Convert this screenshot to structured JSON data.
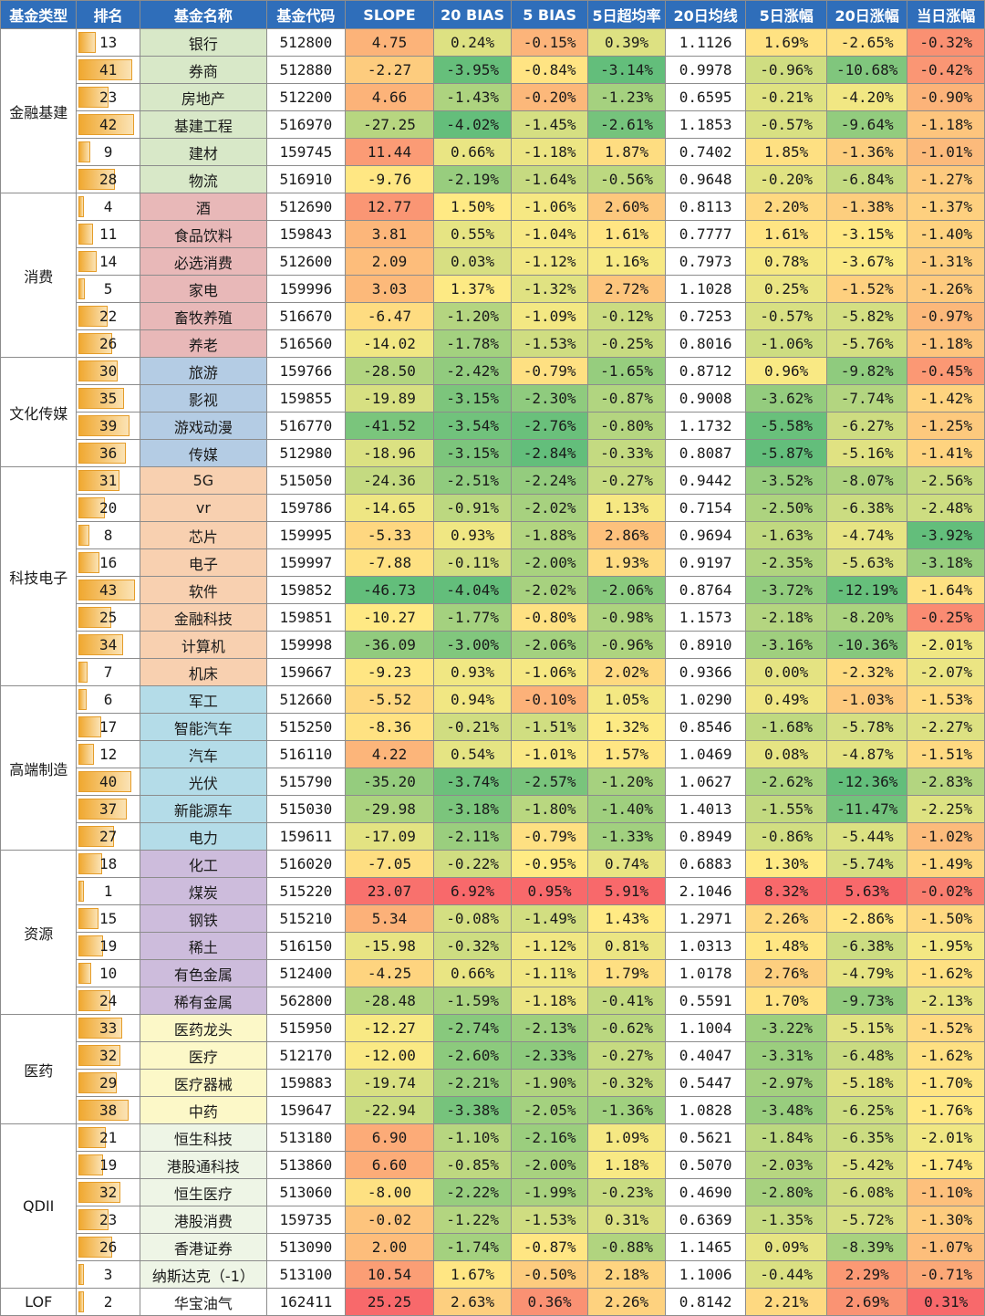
{
  "headers": [
    "基金类型",
    "排名",
    "基金名称",
    "基金代码",
    "SLOPE",
    "20 BIAS",
    "5 BIAS",
    "5日超均率",
    "20日均线",
    "5日涨幅",
    "20日涨幅",
    "当日涨幅"
  ],
  "groups": [
    {
      "type": "金融基建",
      "color": "#d8e8c8",
      "rows": [
        [
          "13",
          "银行",
          "512800",
          "4.75",
          "0.24%",
          "-0.15%",
          "0.39%",
          "1.1126",
          "1.69%",
          "-2.65%",
          "-0.32%"
        ],
        [
          "41",
          "券商",
          "512880",
          "-2.27",
          "-3.95%",
          "-0.84%",
          "-3.14%",
          "0.9978",
          "-0.96%",
          "-10.68%",
          "-0.42%"
        ],
        [
          "23",
          "房地产",
          "512200",
          "4.66",
          "-1.43%",
          "-0.20%",
          "-1.23%",
          "0.6595",
          "-0.21%",
          "-4.20%",
          "-0.90%"
        ],
        [
          "42",
          "基建工程",
          "516970",
          "-27.25",
          "-4.02%",
          "-1.45%",
          "-2.61%",
          "1.1853",
          "-0.57%",
          "-9.64%",
          "-1.18%"
        ],
        [
          "9",
          "建材",
          "159745",
          "11.44",
          "0.66%",
          "-1.18%",
          "1.87%",
          "0.7402",
          "1.85%",
          "-1.36%",
          "-1.01%"
        ],
        [
          "28",
          "物流",
          "516910",
          "-9.76",
          "-2.19%",
          "-1.64%",
          "-0.56%",
          "0.9648",
          "-0.20%",
          "-6.84%",
          "-1.27%"
        ]
      ]
    },
    {
      "type": "消费",
      "color": "#e8b8b8",
      "rows": [
        [
          "4",
          "酒",
          "512690",
          "12.77",
          "1.50%",
          "-1.06%",
          "2.60%",
          "0.8113",
          "2.20%",
          "-1.38%",
          "-1.37%"
        ],
        [
          "11",
          "食品饮料",
          "159843",
          "3.81",
          "0.55%",
          "-1.04%",
          "1.61%",
          "0.7777",
          "1.61%",
          "-3.15%",
          "-1.40%"
        ],
        [
          "14",
          "必选消费",
          "512600",
          "2.09",
          "0.03%",
          "-1.12%",
          "1.16%",
          "0.7973",
          "0.78%",
          "-3.67%",
          "-1.31%"
        ],
        [
          "5",
          "家电",
          "159996",
          "3.03",
          "1.37%",
          "-1.32%",
          "2.72%",
          "1.1028",
          "0.25%",
          "-1.52%",
          "-1.26%"
        ],
        [
          "22",
          "畜牧养殖",
          "516670",
          "-6.47",
          "-1.20%",
          "-1.09%",
          "-0.12%",
          "0.7253",
          "-0.57%",
          "-5.82%",
          "-0.97%"
        ],
        [
          "26",
          "养老",
          "516560",
          "-14.02",
          "-1.78%",
          "-1.53%",
          "-0.25%",
          "0.8016",
          "-1.06%",
          "-5.76%",
          "-1.18%"
        ]
      ]
    },
    {
      "type": "文化传媒",
      "color": "#b4cce4",
      "rows": [
        [
          "30",
          "旅游",
          "159766",
          "-28.50",
          "-2.42%",
          "-0.79%",
          "-1.65%",
          "0.8712",
          "0.96%",
          "-9.82%",
          "-0.45%"
        ],
        [
          "35",
          "影视",
          "159855",
          "-19.89",
          "-3.15%",
          "-2.30%",
          "-0.87%",
          "0.9008",
          "-3.62%",
          "-7.74%",
          "-1.42%"
        ],
        [
          "39",
          "游戏动漫",
          "516770",
          "-41.52",
          "-3.54%",
          "-2.76%",
          "-0.80%",
          "1.1732",
          "-5.58%",
          "-6.27%",
          "-1.25%"
        ],
        [
          "36",
          "传媒",
          "512980",
          "-18.96",
          "-3.15%",
          "-2.84%",
          "-0.33%",
          "0.8087",
          "-5.87%",
          "-5.16%",
          "-1.41%"
        ]
      ]
    },
    {
      "type": "科技电子",
      "color": "#f8d0b0",
      "rows": [
        [
          "31",
          "5G",
          "515050",
          "-24.36",
          "-2.51%",
          "-2.24%",
          "-0.27%",
          "0.9442",
          "-3.52%",
          "-8.07%",
          "-2.56%"
        ],
        [
          "20",
          "vr",
          "159786",
          "-14.65",
          "-0.91%",
          "-2.02%",
          "1.13%",
          "0.7154",
          "-2.50%",
          "-6.38%",
          "-2.48%"
        ],
        [
          "8",
          "芯片",
          "159995",
          "-5.33",
          "0.93%",
          "-1.88%",
          "2.86%",
          "0.9694",
          "-1.63%",
          "-4.74%",
          "-3.92%"
        ],
        [
          "16",
          "电子",
          "159997",
          "-7.88",
          "-0.11%",
          "-2.00%",
          "1.93%",
          "0.9197",
          "-2.35%",
          "-5.63%",
          "-3.18%"
        ],
        [
          "43",
          "软件",
          "159852",
          "-46.73",
          "-4.04%",
          "-2.02%",
          "-2.06%",
          "0.8764",
          "-3.72%",
          "-12.19%",
          "-1.64%"
        ],
        [
          "25",
          "金融科技",
          "159851",
          "-10.27",
          "-1.77%",
          "-0.80%",
          "-0.98%",
          "1.1573",
          "-2.18%",
          "-8.20%",
          "-0.25%"
        ],
        [
          "34",
          "计算机",
          "159998",
          "-36.09",
          "-3.00%",
          "-2.06%",
          "-0.96%",
          "0.8910",
          "-3.16%",
          "-10.36%",
          "-2.01%"
        ],
        [
          "7",
          "机床",
          "159667",
          "-9.23",
          "0.93%",
          "-1.06%",
          "2.02%",
          "0.9366",
          "0.00%",
          "-2.32%",
          "-2.07%"
        ]
      ]
    },
    {
      "type": "高端制造",
      "color": "#b4dce8",
      "rows": [
        [
          "6",
          "军工",
          "512660",
          "-5.52",
          "0.94%",
          "-0.10%",
          "1.05%",
          "1.0290",
          "0.49%",
          "-1.03%",
          "-1.53%"
        ],
        [
          "17",
          "智能汽车",
          "515250",
          "-8.36",
          "-0.21%",
          "-1.51%",
          "1.32%",
          "0.8546",
          "-1.68%",
          "-5.78%",
          "-2.27%"
        ],
        [
          "12",
          "汽车",
          "516110",
          "4.22",
          "0.54%",
          "-1.01%",
          "1.57%",
          "1.0469",
          "0.08%",
          "-4.87%",
          "-1.51%"
        ],
        [
          "40",
          "光伏",
          "515790",
          "-35.20",
          "-3.74%",
          "-2.57%",
          "-1.20%",
          "1.0627",
          "-2.62%",
          "-12.36%",
          "-2.83%"
        ],
        [
          "37",
          "新能源车",
          "515030",
          "-29.98",
          "-3.18%",
          "-1.80%",
          "-1.40%",
          "1.4013",
          "-1.55%",
          "-11.47%",
          "-2.25%"
        ],
        [
          "27",
          "电力",
          "159611",
          "-17.09",
          "-2.11%",
          "-0.79%",
          "-1.33%",
          "0.8949",
          "-0.86%",
          "-5.44%",
          "-1.02%"
        ]
      ]
    },
    {
      "type": "资源",
      "color": "#cdbcdc",
      "rows": [
        [
          "18",
          "化工",
          "516020",
          "-7.05",
          "-0.22%",
          "-0.95%",
          "0.74%",
          "0.6883",
          "1.30%",
          "-5.74%",
          "-1.49%"
        ],
        [
          "1",
          "煤炭",
          "515220",
          "23.07",
          "6.92%",
          "0.95%",
          "5.91%",
          "2.1046",
          "8.32%",
          "5.63%",
          "-0.02%"
        ],
        [
          "15",
          "钢铁",
          "515210",
          "5.34",
          "-0.08%",
          "-1.49%",
          "1.43%",
          "1.2971",
          "2.26%",
          "-2.86%",
          "-1.50%"
        ],
        [
          "19",
          "稀土",
          "516150",
          "-15.98",
          "-0.32%",
          "-1.12%",
          "0.81%",
          "1.0313",
          "1.48%",
          "-6.38%",
          "-1.95%"
        ],
        [
          "10",
          "有色金属",
          "512400",
          "-4.25",
          "0.66%",
          "-1.11%",
          "1.79%",
          "1.0178",
          "2.76%",
          "-4.79%",
          "-1.62%"
        ],
        [
          "24",
          "稀有金属",
          "562800",
          "-28.48",
          "-1.59%",
          "-1.18%",
          "-0.41%",
          "0.5591",
          "1.70%",
          "-9.73%",
          "-2.13%"
        ]
      ]
    },
    {
      "type": "医药",
      "color": "#fcf8c8",
      "rows": [
        [
          "33",
          "医药龙头",
          "515950",
          "-12.27",
          "-2.74%",
          "-2.13%",
          "-0.62%",
          "1.1004",
          "-3.22%",
          "-5.15%",
          "-1.52%"
        ],
        [
          "32",
          "医疗",
          "512170",
          "-12.00",
          "-2.60%",
          "-2.33%",
          "-0.27%",
          "0.4047",
          "-3.31%",
          "-6.48%",
          "-1.62%"
        ],
        [
          "29",
          "医疗器械",
          "159883",
          "-19.74",
          "-2.21%",
          "-1.90%",
          "-0.32%",
          "0.5447",
          "-2.97%",
          "-5.18%",
          "-1.70%"
        ],
        [
          "38",
          "中药",
          "159647",
          "-22.94",
          "-3.38%",
          "-2.05%",
          "-1.36%",
          "1.0828",
          "-3.48%",
          "-6.25%",
          "-1.76%"
        ]
      ]
    },
    {
      "type": "QDII",
      "color": "#eef5e6",
      "rows": [
        [
          "21",
          "恒生科技",
          "513180",
          "6.90",
          "-1.10%",
          "-2.16%",
          "1.09%",
          "0.5621",
          "-1.84%",
          "-6.35%",
          "-2.01%"
        ],
        [
          "19",
          "港股通科技",
          "513860",
          "6.60",
          "-0.85%",
          "-2.00%",
          "1.18%",
          "0.5070",
          "-2.03%",
          "-5.42%",
          "-1.74%"
        ],
        [
          "32",
          "恒生医疗",
          "513060",
          "-8.00",
          "-2.22%",
          "-1.99%",
          "-0.23%",
          "0.4690",
          "-2.80%",
          "-6.08%",
          "-1.10%"
        ],
        [
          "23",
          "港股消费",
          "159735",
          "-0.02",
          "-1.22%",
          "-1.53%",
          "0.31%",
          "0.6369",
          "-1.35%",
          "-5.72%",
          "-1.30%"
        ],
        [
          "26",
          "香港证券",
          "513090",
          "2.00",
          "-1.74%",
          "-0.87%",
          "-0.88%",
          "1.1465",
          "0.09%",
          "-8.39%",
          "-1.07%"
        ],
        [
          "3",
          "纳斯达克（-1）",
          "513100",
          "10.54",
          "1.67%",
          "-0.50%",
          "2.18%",
          "1.1006",
          "-0.44%",
          "2.29%",
          "-0.71%"
        ]
      ]
    },
    {
      "type": "LOF",
      "color": "#ffffff",
      "rows": [
        [
          "2",
          "华宝油气",
          "162411",
          "25.25",
          "2.63%",
          "0.36%",
          "2.26%",
          "0.8142",
          "2.21%",
          "2.69%",
          "0.31%"
        ]
      ]
    }
  ]
}
